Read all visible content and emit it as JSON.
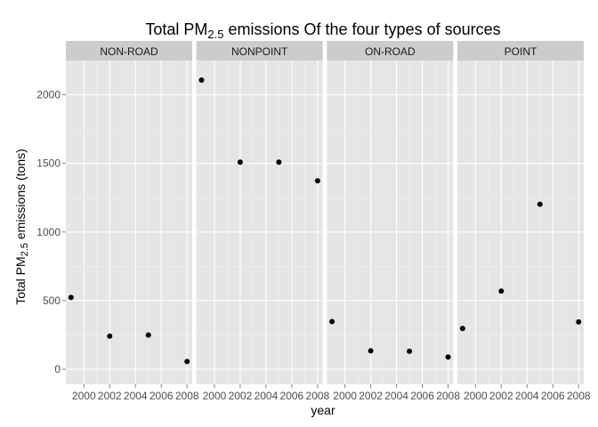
{
  "chart_data": {
    "type": "scatter",
    "title": {
      "prefix": "Total PM",
      "subscript": "2.5",
      "suffix": " emissions Of the four types of sources"
    },
    "xlabel": "year",
    "ylabel": {
      "prefix": "Total PM",
      "subscript": "2.5",
      "suffix": " emissions (tons)"
    },
    "xlim": [
      1998.6,
      2008.4
    ],
    "ylim": [
      -110,
      2250
    ],
    "x_ticks": [
      2000,
      2002,
      2004,
      2006,
      2008
    ],
    "y_ticks": [
      0,
      500,
      1000,
      1500,
      2000
    ],
    "grid": true,
    "point_color": "#000000",
    "panel_background": "#e5e5e5",
    "strip_background": "#cccccc",
    "facets": [
      {
        "name": "NON-ROAD",
        "points": [
          {
            "x": 1999,
            "y": 522.94
          },
          {
            "x": 2002,
            "y": 240.85
          },
          {
            "x": 2005,
            "y": 248.93
          },
          {
            "x": 2008,
            "y": 55.82
          }
        ]
      },
      {
        "name": "NONPOINT",
        "points": [
          {
            "x": 1999,
            "y": 2107.63
          },
          {
            "x": 2002,
            "y": 1509.5
          },
          {
            "x": 2005,
            "y": 1509.5
          },
          {
            "x": 2008,
            "y": 1373.21
          }
        ]
      },
      {
        "name": "ON-ROAD",
        "points": [
          {
            "x": 1999,
            "y": 346.82
          },
          {
            "x": 2002,
            "y": 134.31
          },
          {
            "x": 2005,
            "y": 130.43
          },
          {
            "x": 2008,
            "y": 88.28
          }
        ]
      },
      {
        "name": "POINT",
        "points": [
          {
            "x": 1999,
            "y": 296.8
          },
          {
            "x": 2002,
            "y": 569.26
          },
          {
            "x": 2005,
            "y": 1202.49
          },
          {
            "x": 2008,
            "y": 344.98
          }
        ]
      }
    ]
  }
}
